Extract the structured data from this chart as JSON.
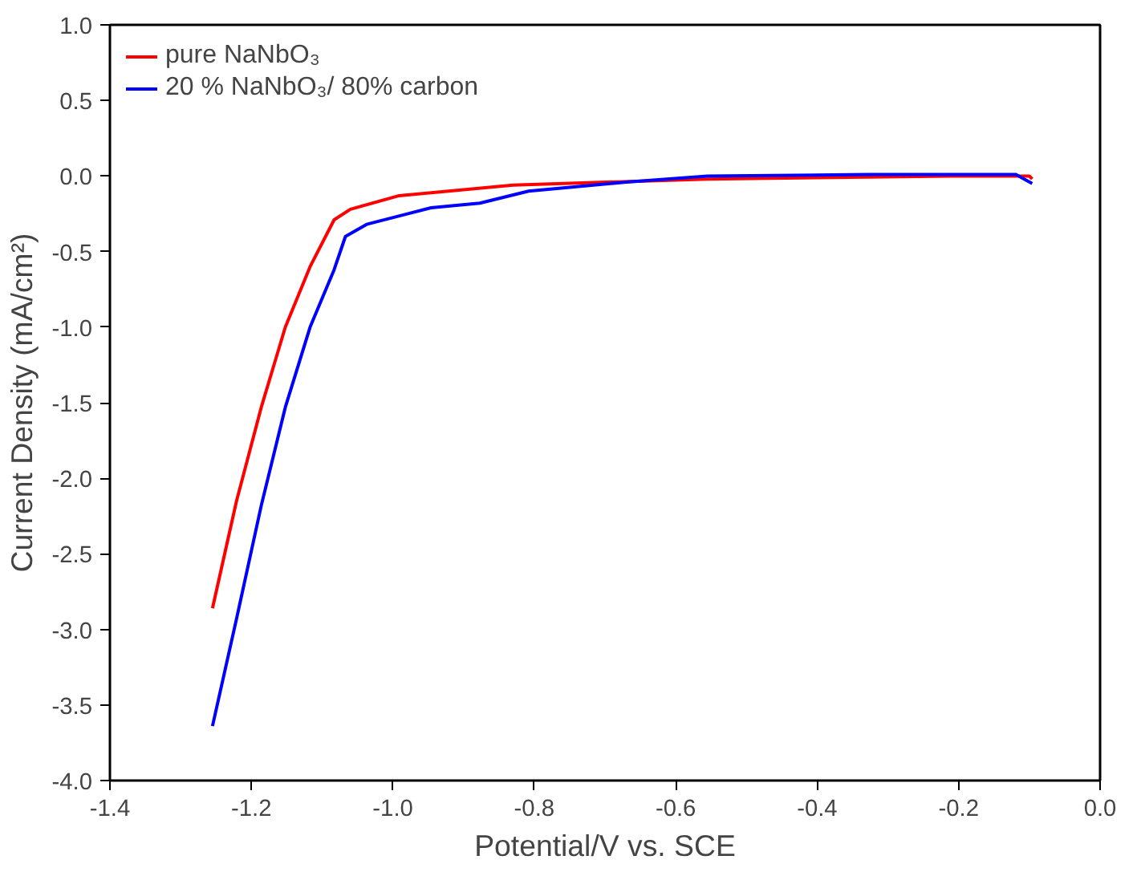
{
  "chart_data": {
    "type": "line",
    "xlabel": "Potential/V vs. SCE",
    "ylabel": "Current Density (mA/cm²)",
    "xlim": [
      -1.4,
      0.0
    ],
    "ylim": [
      -4.0,
      1.0
    ],
    "xticks": [
      -1.4,
      -1.2,
      {
        "value": -1,
        "label": "-1.0"
      },
      -0.8,
      -0.6,
      -0.4,
      -0.2,
      {
        "value": 0,
        "label": "0.0"
      }
    ],
    "yticks": [
      {
        "value": -4,
        "label": "-4.0"
      },
      -3.5,
      {
        "value": -3,
        "label": "-3.0"
      },
      -2.5,
      {
        "value": -2,
        "label": "-2.0"
      },
      -1.5,
      {
        "value": -1,
        "label": "-1.0"
      },
      -0.5,
      {
        "value": 0,
        "label": "0.0"
      },
      0.5,
      {
        "value": 1,
        "label": "1.0"
      }
    ],
    "legend": "top left",
    "grid": false,
    "line_style": "solid",
    "series": [
      {
        "name": "pure NaNbO₃",
        "color": "#ff0000",
        "x": [
          -1.255,
          -1.221,
          -1.186,
          -1.152,
          -1.117,
          -1.083,
          -1.06,
          -0.991,
          -0.83,
          -0.555,
          -0.21,
          -0.1,
          -0.096
        ],
        "values": [
          -2.86,
          -2.15,
          -1.53,
          -1.0,
          -0.6,
          -0.29,
          -0.22,
          -0.13,
          -0.06,
          -0.02,
          0.0,
          0.0,
          -0.02
        ]
      },
      {
        "name": "20 % NaNbO₃/ 80% carbon",
        "color": "#0000ff",
        "x": [
          -1.255,
          -1.221,
          -1.186,
          -1.152,
          -1.117,
          -1.083,
          -1.067,
          -1.037,
          -0.946,
          -0.877,
          -0.808,
          -0.762,
          -0.67,
          -0.555,
          -0.326,
          -0.119,
          -0.096
        ],
        "values": [
          -3.64,
          -2.93,
          -2.18,
          -1.53,
          -1.0,
          -0.62,
          -0.4,
          -0.32,
          -0.21,
          -0.18,
          -0.1,
          -0.08,
          -0.04,
          0.0,
          0.01,
          0.01,
          -0.05
        ]
      }
    ]
  }
}
